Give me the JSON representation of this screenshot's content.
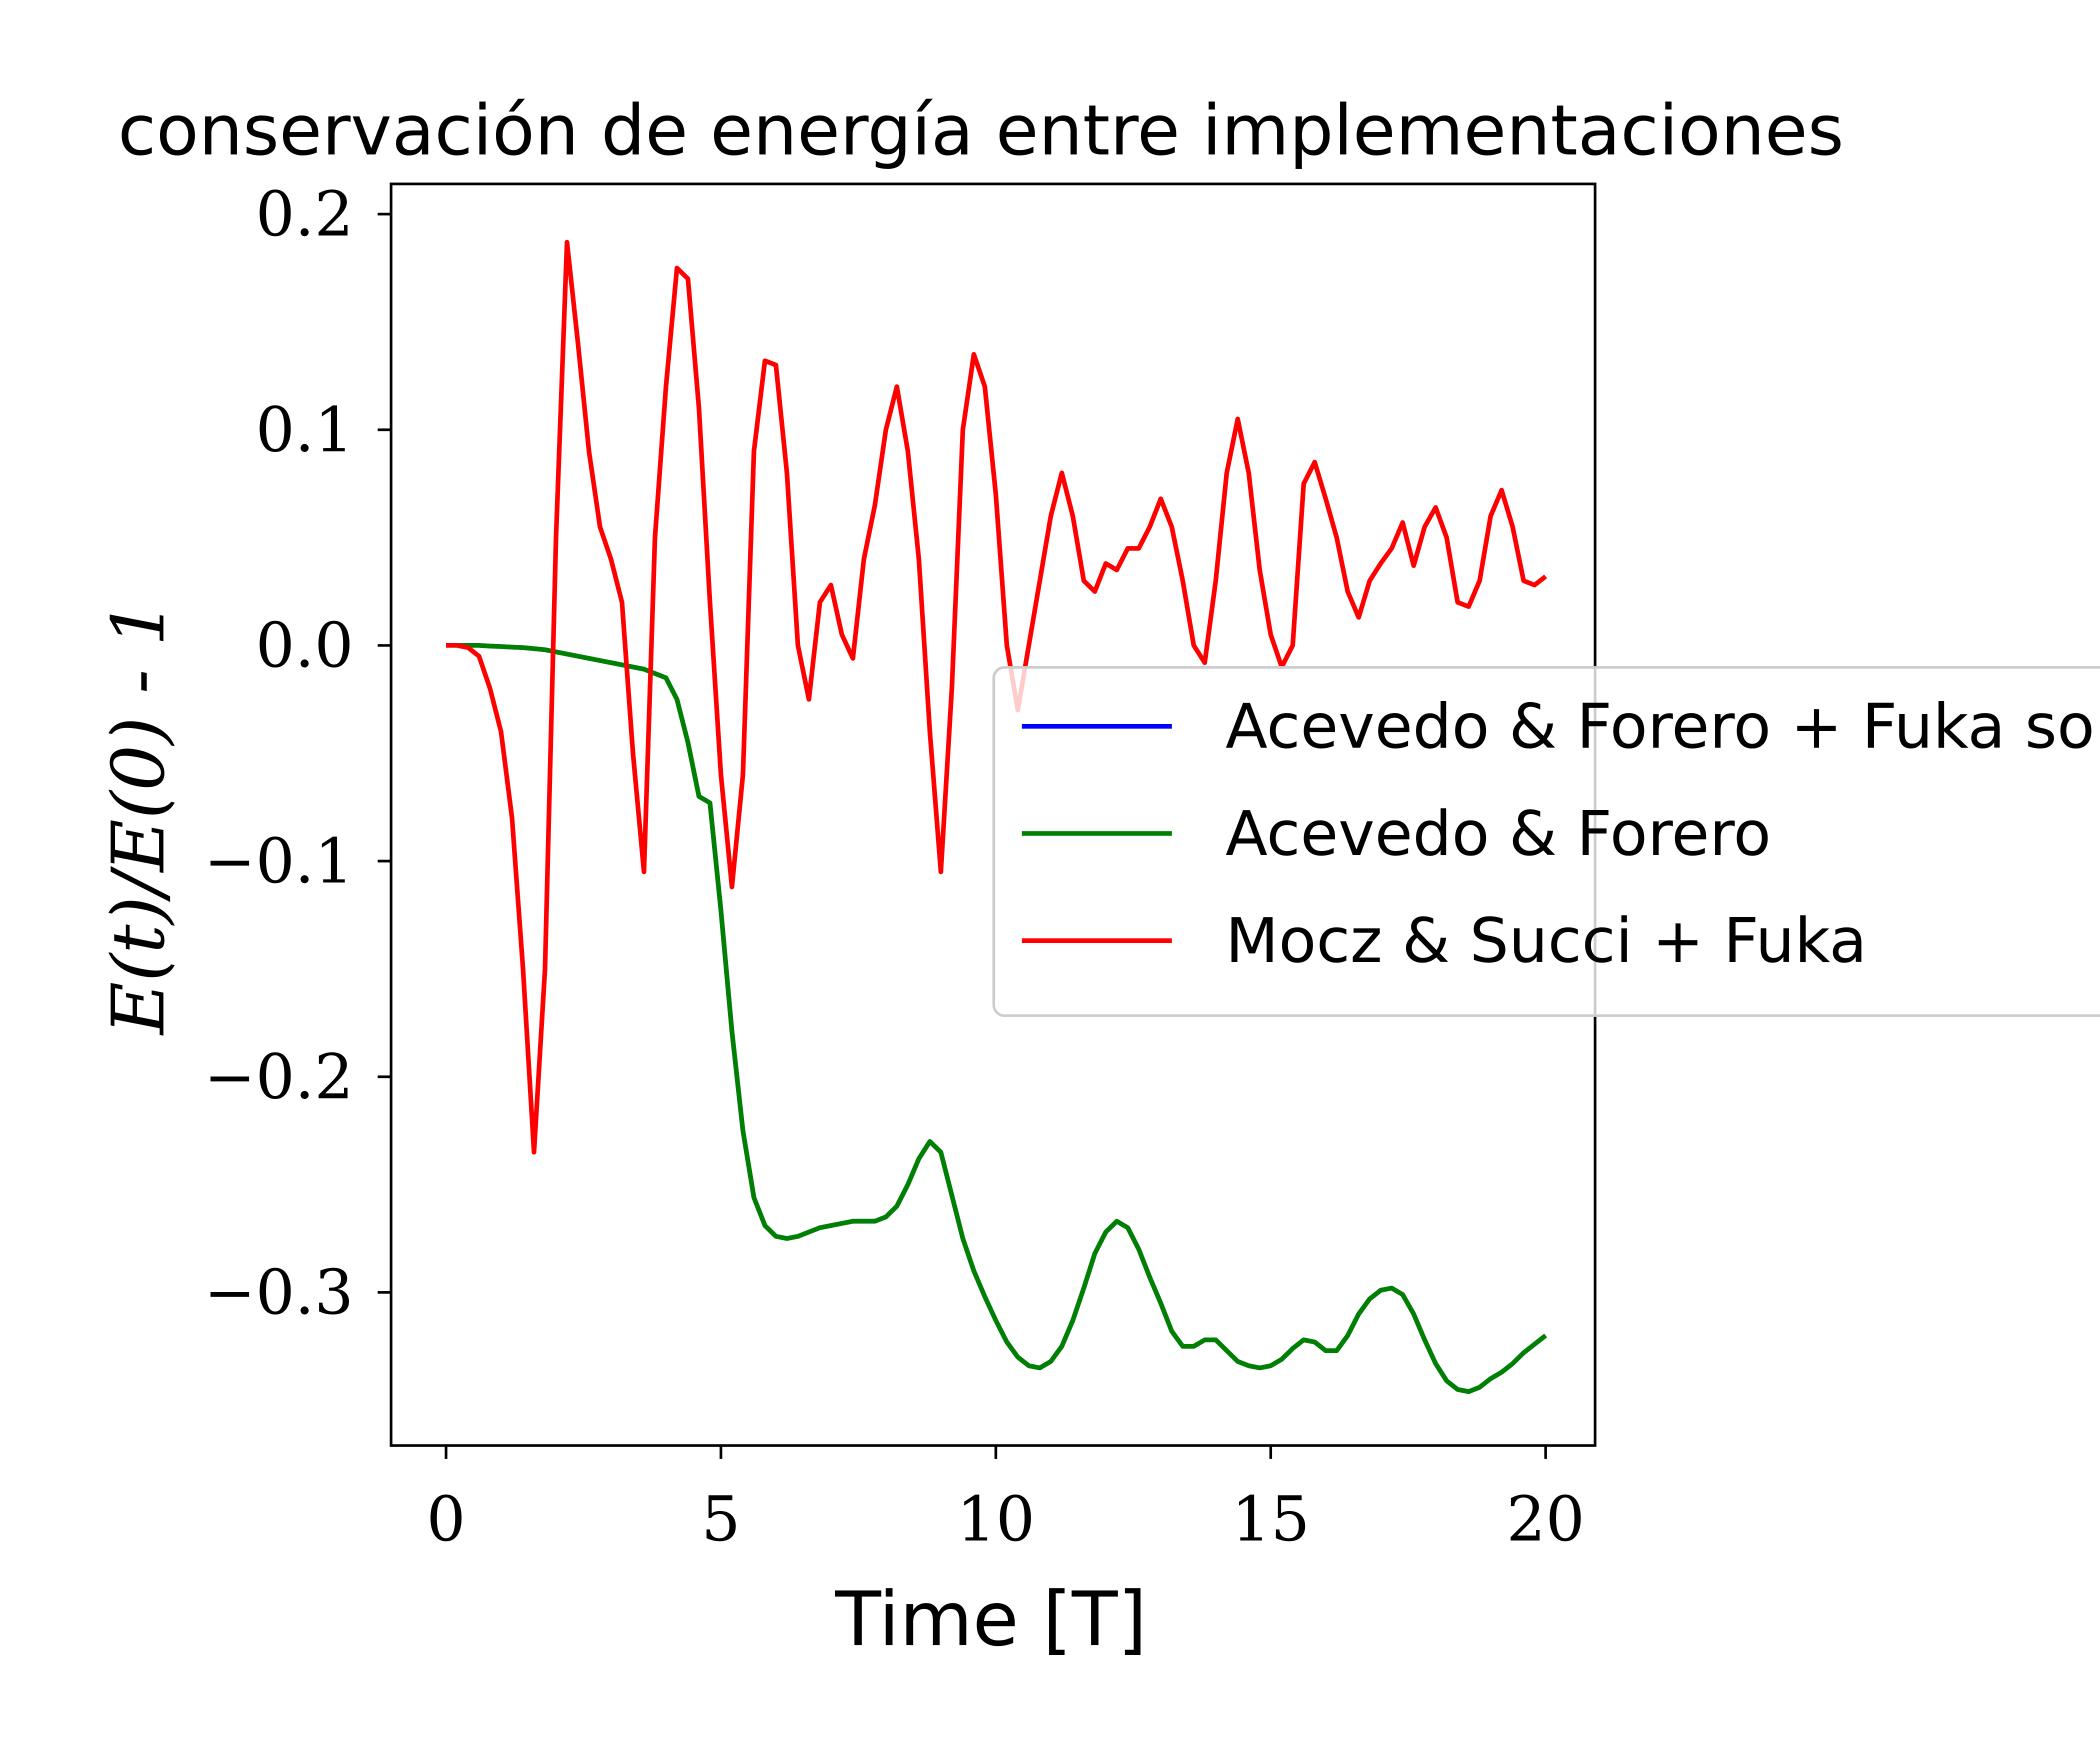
{
  "chart_data": {
    "type": "line",
    "title": "conservación de energía entre implementaciones",
    "xlabel": "Time [T]",
    "ylabel": "E(t)/E(0) - 1",
    "xlim": [
      -1.0,
      20.9
    ],
    "ylim": [
      -0.371,
      0.214
    ],
    "xticks": [
      0,
      5,
      10,
      15,
      20
    ],
    "yticks": [
      {
        "value": -0.3,
        "label": "−0.3"
      },
      {
        "value": -0.2,
        "label": "−0.2"
      },
      {
        "value": -0.1,
        "label": "−0.1"
      },
      {
        "value": 0,
        "label": "0.0"
      },
      0.1,
      0.2
    ],
    "legend_loc": "center right",
    "x": [
      0,
      0.2,
      0.4,
      0.6,
      0.8,
      1,
      1.2,
      1.4,
      1.6,
      1.8,
      2,
      2.2,
      2.4,
      2.6,
      2.8,
      3,
      3.2,
      3.4,
      3.6,
      3.8,
      4,
      4.2,
      4.4,
      4.6,
      4.8,
      5,
      5.2,
      5.4,
      5.6,
      5.8,
      6,
      6.2,
      6.4,
      6.6,
      6.8,
      7,
      7.2,
      7.4,
      7.6,
      7.8,
      8,
      8.2,
      8.4,
      8.6,
      8.8,
      9,
      9.2,
      9.4,
      9.6,
      9.8,
      10,
      10.2,
      10.4,
      10.6,
      10.8,
      11,
      11.2,
      11.4,
      11.6,
      11.8,
      12,
      12.2,
      12.4,
      12.6,
      12.8,
      13,
      13.2,
      13.4,
      13.6,
      13.8,
      14,
      14.2,
      14.4,
      14.6,
      14.8,
      15,
      15.2,
      15.4,
      15.6,
      15.8,
      16,
      16.2,
      16.4,
      16.6,
      16.8,
      17,
      17.2,
      17.4,
      17.6,
      17.8,
      18,
      18.2,
      18.4,
      18.6,
      18.8,
      19,
      19.2,
      19.4,
      19.6,
      19.8,
      20
    ],
    "series": [
      {
        "name": "Acevedo & Forero + Fuka sol",
        "color": "#0000ff",
        "values": [
          0,
          0,
          0,
          0,
          -0.0003,
          -0.0005,
          -0.0008,
          -0.001,
          -0.0015,
          -0.002,
          -0.003,
          -0.004,
          -0.005,
          -0.006,
          -0.007,
          -0.008,
          -0.009,
          -0.01,
          -0.011,
          -0.013,
          -0.015,
          -0.025,
          -0.045,
          -0.07,
          -0.073,
          -0.123,
          -0.179,
          -0.225,
          -0.256,
          -0.269,
          -0.274,
          -0.275,
          -0.274,
          -0.272,
          -0.27,
          -0.269,
          -0.268,
          -0.267,
          -0.267,
          -0.267,
          -0.265,
          -0.26,
          -0.25,
          -0.238,
          -0.23,
          -0.235,
          -0.255,
          -0.275,
          -0.29,
          -0.302,
          -0.313,
          -0.323,
          -0.33,
          -0.334,
          -0.335,
          -0.332,
          -0.325,
          -0.313,
          -0.298,
          -0.282,
          -0.272,
          -0.267,
          -0.27,
          -0.28,
          -0.293,
          -0.305,
          -0.318,
          -0.325,
          -0.325,
          -0.322,
          -0.322,
          -0.327,
          -0.332,
          -0.334,
          -0.335,
          -0.334,
          -0.331,
          -0.326,
          -0.322,
          -0.323,
          -0.327,
          -0.327,
          -0.32,
          -0.31,
          -0.303,
          -0.299,
          -0.298,
          -0.301,
          -0.31,
          -0.322,
          -0.333,
          -0.341,
          -0.345,
          -0.346,
          -0.344,
          -0.34,
          -0.337,
          -0.333,
          -0.328,
          -0.324,
          -0.32
        ]
      },
      {
        "name": "Acevedo & Forero",
        "color": "#008000",
        "values": [
          0,
          0,
          0,
          0,
          -0.0003,
          -0.0005,
          -0.0008,
          -0.001,
          -0.0015,
          -0.002,
          -0.003,
          -0.004,
          -0.005,
          -0.006,
          -0.007,
          -0.008,
          -0.009,
          -0.01,
          -0.011,
          -0.013,
          -0.015,
          -0.025,
          -0.045,
          -0.07,
          -0.073,
          -0.123,
          -0.179,
          -0.225,
          -0.256,
          -0.269,
          -0.274,
          -0.275,
          -0.274,
          -0.272,
          -0.27,
          -0.269,
          -0.268,
          -0.267,
          -0.267,
          -0.267,
          -0.265,
          -0.26,
          -0.25,
          -0.238,
          -0.23,
          -0.235,
          -0.255,
          -0.275,
          -0.29,
          -0.302,
          -0.313,
          -0.323,
          -0.33,
          -0.334,
          -0.335,
          -0.332,
          -0.325,
          -0.313,
          -0.298,
          -0.282,
          -0.272,
          -0.267,
          -0.27,
          -0.28,
          -0.293,
          -0.305,
          -0.318,
          -0.325,
          -0.325,
          -0.322,
          -0.322,
          -0.327,
          -0.332,
          -0.334,
          -0.335,
          -0.334,
          -0.331,
          -0.326,
          -0.322,
          -0.323,
          -0.327,
          -0.327,
          -0.32,
          -0.31,
          -0.303,
          -0.299,
          -0.298,
          -0.301,
          -0.31,
          -0.322,
          -0.333,
          -0.341,
          -0.345,
          -0.346,
          -0.344,
          -0.34,
          -0.337,
          -0.333,
          -0.328,
          -0.324,
          -0.32
        ]
      },
      {
        "name": "Mocz & Succi + Fuka",
        "color": "#ff0000",
        "values": [
          0,
          0,
          -0.001,
          -0.005,
          -0.02,
          -0.04,
          -0.08,
          -0.15,
          -0.235,
          -0.15,
          0.05,
          0.187,
          0.14,
          0.09,
          0.055,
          0.04,
          0.02,
          -0.05,
          -0.105,
          0.05,
          0.12,
          0.175,
          0.17,
          0.11,
          0.02,
          -0.06,
          -0.112,
          -0.06,
          0.09,
          0.132,
          0.13,
          0.08,
          0,
          -0.025,
          0.02,
          0.028,
          0.005,
          -0.006,
          0.04,
          0.065,
          0.1,
          0.12,
          0.09,
          0.04,
          -0.04,
          -0.105,
          -0.02,
          0.1,
          0.135,
          0.12,
          0.07,
          0,
          -0.03,
          0,
          0.03,
          0.06,
          0.08,
          0.06,
          0.03,
          0.025,
          0.038,
          0.035,
          0.045,
          0.045,
          0.055,
          0.068,
          0.055,
          0.03,
          0,
          -0.008,
          0.03,
          0.08,
          0.105,
          0.08,
          0.035,
          0.005,
          -0.01,
          0,
          0.075,
          0.085,
          0.068,
          0.05,
          0.025,
          0.013,
          0.03,
          0.038,
          0.045,
          0.057,
          0.037,
          0.055,
          0.064,
          0.05,
          0.02,
          0.018,
          0.03,
          0.06,
          0.072,
          0.055,
          0.03,
          0.028,
          0.032
        ]
      }
    ]
  }
}
